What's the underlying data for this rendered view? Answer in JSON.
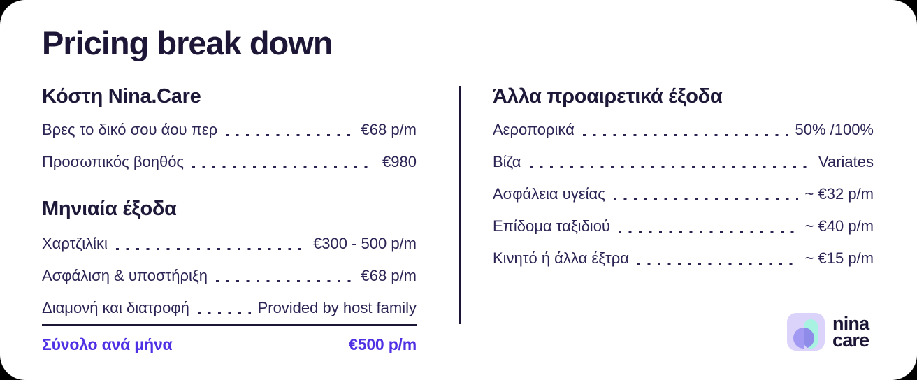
{
  "page": {
    "title": "Pricing break down"
  },
  "left_column": {
    "sections": [
      {
        "heading": "Κόστη Nina.Care",
        "rows": [
          {
            "label": "Βρες το δικό σου άου περ",
            "value": "€68 p/m"
          },
          {
            "label": "Προσωπικός βοηθός",
            "value": "€980"
          }
        ]
      },
      {
        "heading": "Μηνιαία έξοδα",
        "rows": [
          {
            "label": "Χαρτζιλίκι",
            "value": "€300 - 500 p/m"
          },
          {
            "label": "Ασφάλιση & υποστήριξη",
            "value": "€68 p/m"
          },
          {
            "label": "Διαμονή και διατροφή",
            "value": "Provided by host family"
          }
        ]
      }
    ],
    "total": {
      "label": "Σύνολο ανά μήνα",
      "value": "€500 p/m"
    }
  },
  "right_column": {
    "heading": "Άλλα προαιρετικά έξοδα",
    "rows": [
      {
        "label": "Αεροπορικά",
        "value": "50% /100%"
      },
      {
        "label": "Βίζα",
        "value": "Variates"
      },
      {
        "label": "Ασφάλεια υγείας",
        "value": "~ €32 p/m"
      },
      {
        "label": "Επίδομα ταξιδιού",
        "value": "~ €40 p/m"
      },
      {
        "label": "Κινητό ή άλλα έξτρα",
        "value": "~ €15 p/m"
      }
    ]
  },
  "logo": {
    "line1": "nina",
    "line2": "care"
  },
  "colors": {
    "text_navy": "#2b2454",
    "heading_navy": "#1d1636",
    "accent_purple": "#4f30e4",
    "logo_square": "#dbd3fa",
    "logo_pill_mint": "#a7f2e1",
    "logo_circle_purple": "#a29af2",
    "logo_overlap": "#8e8be9"
  }
}
